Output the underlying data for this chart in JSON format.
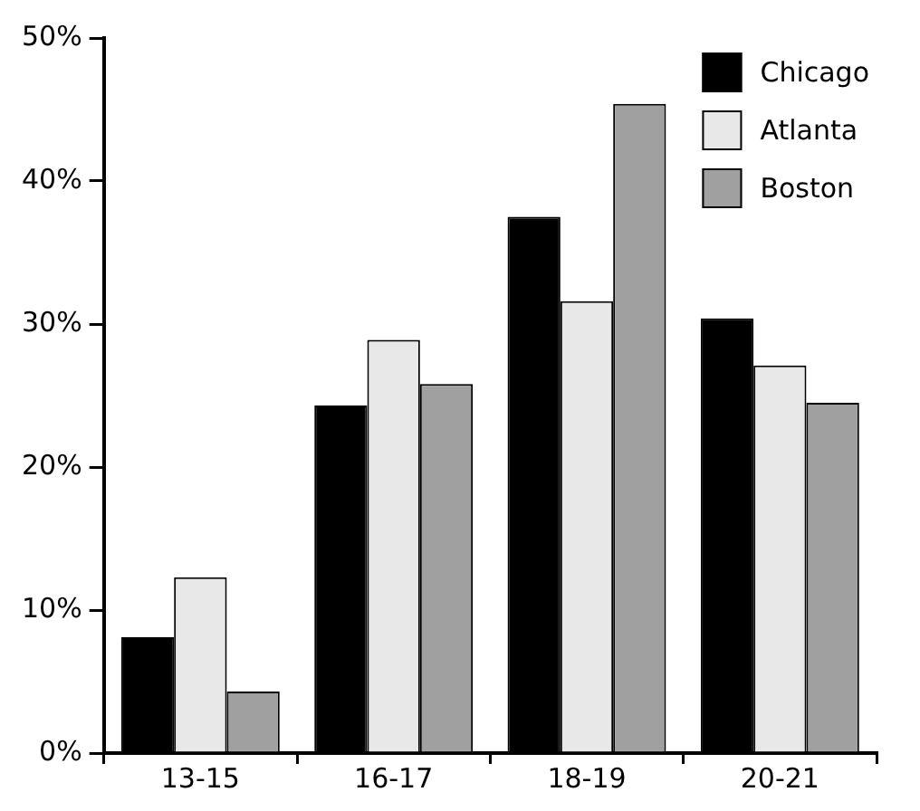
{
  "chart_data": {
    "type": "bar",
    "categories": [
      "13-15",
      "16-17",
      "18-19",
      "20-21"
    ],
    "series": [
      {
        "name": "Chicago",
        "color": "#000000",
        "values": [
          8.1,
          24.3,
          37.5,
          30.4
        ]
      },
      {
        "name": "Atlanta",
        "color": "#e8e8e8",
        "values": [
          12.3,
          28.9,
          31.6,
          27.1
        ]
      },
      {
        "name": "Boston",
        "color": "#a0a0a0",
        "values": [
          4.3,
          25.8,
          45.4,
          24.5
        ]
      }
    ],
    "ylim": [
      0,
      50
    ],
    "yticks": [
      {
        "value": 0,
        "label": "0%"
      },
      {
        "value": 10,
        "label": "10%"
      },
      {
        "value": 20,
        "label": "20%"
      },
      {
        "value": 30,
        "label": "30%"
      },
      {
        "value": 40,
        "label": "40%"
      },
      {
        "value": 50,
        "label": "50%"
      }
    ],
    "grid": false,
    "legend": "top right"
  }
}
